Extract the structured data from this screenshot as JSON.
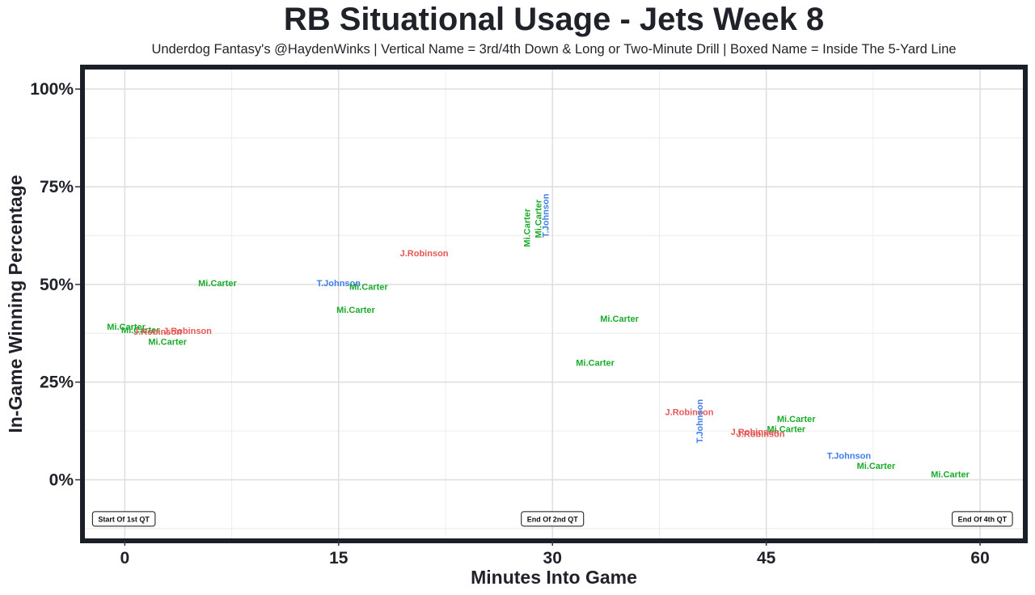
{
  "chart_data": {
    "type": "scatter",
    "title": "RB Situational Usage - Jets Week 8",
    "subtitle": "Underdog Fantasy's @HaydenWinks | Vertical Name = 3rd/4th Down & Long or Two-Minute Drill | Boxed Name = Inside The 5-Yard Line",
    "xlabel": "Minutes Into Game",
    "ylabel": "In-Game Winning Percentage",
    "xlim": [
      -2.8,
      63
    ],
    "ylim": [
      -15,
      105
    ],
    "x_ticks": [
      {
        "value": 0,
        "label": "0"
      },
      {
        "value": 15,
        "label": "15"
      },
      {
        "value": 30,
        "label": "30"
      },
      {
        "value": 45,
        "label": "45"
      },
      {
        "value": 60,
        "label": "60"
      }
    ],
    "y_ticks": [
      {
        "value": 0,
        "label": "0%"
      },
      {
        "value": 25,
        "label": "25%"
      },
      {
        "value": 50,
        "label": "50%"
      },
      {
        "value": 75,
        "label": "75%"
      },
      {
        "value": 100,
        "label": "100%"
      }
    ],
    "colors": {
      "Mi.Carter": "#1aab2c",
      "J.Robinson": "#e65656",
      "T.Johnson": "#3f7fe8"
    },
    "points": [
      {
        "player": "Mi.Carter",
        "x": 0.1,
        "y": 39.2,
        "vertical": false
      },
      {
        "player": "Mi.Carter",
        "x": 1.1,
        "y": 38.4,
        "vertical": false
      },
      {
        "player": "J.Robinson",
        "x": 2.3,
        "y": 38.0,
        "vertical": false
      },
      {
        "player": "J.Robinson",
        "x": 4.4,
        "y": 38.2,
        "vertical": false
      },
      {
        "player": "Mi.Carter",
        "x": 3.0,
        "y": 35.4,
        "vertical": false
      },
      {
        "player": "Mi.Carter",
        "x": 6.5,
        "y": 50.4,
        "vertical": false
      },
      {
        "player": "T.Johnson",
        "x": 15.0,
        "y": 50.4,
        "vertical": false
      },
      {
        "player": "Mi.Carter",
        "x": 17.1,
        "y": 49.4,
        "vertical": false
      },
      {
        "player": "Mi.Carter",
        "x": 16.2,
        "y": 43.6,
        "vertical": false
      },
      {
        "player": "J.Robinson",
        "x": 21.0,
        "y": 58.0,
        "vertical": false
      },
      {
        "player": "Mi.Carter",
        "x": 28.2,
        "y": 64.5,
        "vertical": true
      },
      {
        "player": "Mi.Carter",
        "x": 29.0,
        "y": 66.8,
        "vertical": true
      },
      {
        "player": "T.Johnson",
        "x": 29.5,
        "y": 67.6,
        "vertical": true
      },
      {
        "player": "Mi.Carter",
        "x": 34.7,
        "y": 41.3,
        "vertical": false
      },
      {
        "player": "Mi.Carter",
        "x": 33.0,
        "y": 30.0,
        "vertical": false
      },
      {
        "player": "J.Robinson",
        "x": 39.6,
        "y": 17.4,
        "vertical": false
      },
      {
        "player": "T.Johnson",
        "x": 40.3,
        "y": 15.0,
        "vertical": true
      },
      {
        "player": "J.Robinson",
        "x": 44.2,
        "y": 12.3,
        "vertical": false
      },
      {
        "player": "J.Robinson",
        "x": 44.6,
        "y": 11.8,
        "vertical": false
      },
      {
        "player": "Mi.Carter",
        "x": 46.4,
        "y": 13.0,
        "vertical": false
      },
      {
        "player": "Mi.Carter",
        "x": 47.1,
        "y": 15.6,
        "vertical": false
      },
      {
        "player": "T.Johnson",
        "x": 50.8,
        "y": 6.2,
        "vertical": false
      },
      {
        "player": "Mi.Carter",
        "x": 52.7,
        "y": 3.6,
        "vertical": false
      },
      {
        "player": "Mi.Carter",
        "x": 57.9,
        "y": 1.5,
        "vertical": false
      }
    ],
    "annotations": [
      {
        "label": "Start Of 1st QT",
        "x": 0,
        "y": -10,
        "anchor": "start"
      },
      {
        "label": "End Of 2nd QT",
        "x": 30,
        "y": -10,
        "anchor": "middle"
      },
      {
        "label": "End Of 4th QT",
        "x": 60,
        "y": -10,
        "anchor": "end"
      }
    ]
  }
}
